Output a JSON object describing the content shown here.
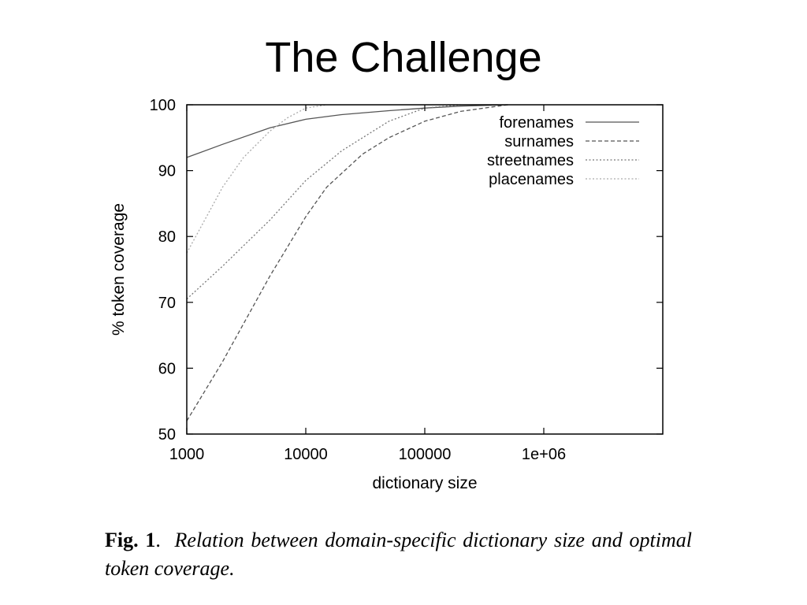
{
  "slide": {
    "title": "The Challenge"
  },
  "caption": {
    "label": "Fig. 1",
    "separator": ".",
    "text": "Relation between domain-specific dictionary size and optimal token coverage."
  },
  "chart_data": {
    "type": "line",
    "title": "",
    "xlabel": "dictionary size",
    "ylabel": "% token coverage",
    "x_scale": "log",
    "xlim": [
      1000,
      10000000
    ],
    "ylim": [
      50,
      100
    ],
    "x_ticks": [
      1000,
      10000,
      100000,
      1000000
    ],
    "x_tick_labels": [
      "1000",
      "10000",
      "100000",
      "1e+06"
    ],
    "y_ticks": [
      50,
      60,
      70,
      80,
      90,
      100
    ],
    "y_tick_labels": [
      "50",
      "60",
      "70",
      "80",
      "90",
      "100"
    ],
    "grid": false,
    "legend_position": "top-right",
    "series": [
      {
        "name": "forenames",
        "color": "#555555",
        "dash": "solid",
        "x": [
          1000,
          2000,
          5000,
          10000,
          20000,
          50000,
          100000,
          200000,
          500000
        ],
        "y": [
          92,
          94,
          96.5,
          97.8,
          98.5,
          99.1,
          99.5,
          99.8,
          100
        ]
      },
      {
        "name": "surnames",
        "color": "#555555",
        "dash": "dashed",
        "x": [
          1000,
          2000,
          5000,
          10000,
          15000,
          30000,
          50000,
          100000,
          200000,
          500000
        ],
        "y": [
          52,
          61,
          74,
          83,
          87.5,
          92.5,
          95,
          97.5,
          99,
          100
        ]
      },
      {
        "name": "streetnames",
        "color": "#777777",
        "dash": "dotted",
        "x": [
          1000,
          2000,
          5000,
          10000,
          20000,
          50000,
          100000,
          200000
        ],
        "y": [
          70.5,
          75.5,
          82.5,
          88.5,
          93,
          97.5,
          99.5,
          100
        ]
      },
      {
        "name": "placenames",
        "color": "#aaaaaa",
        "dash": "dotted",
        "x": [
          1000,
          2000,
          3000,
          5000,
          7000,
          10000,
          15000
        ],
        "y": [
          77.5,
          87.5,
          92,
          96,
          98,
          99.5,
          100
        ]
      }
    ]
  }
}
